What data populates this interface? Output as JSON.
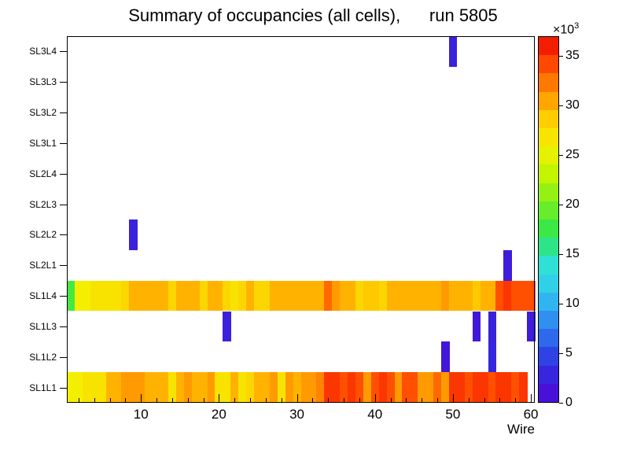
{
  "chart_data": {
    "type": "heatmap",
    "title": "Summary of occupancies (all cells),      run 5805",
    "xlabel": "Wire",
    "x_range": [
      0.5,
      60.5
    ],
    "x_ticks": [
      10,
      20,
      30,
      40,
      50,
      60
    ],
    "x_minor_tick_step": 2,
    "z_range": [
      0,
      37000
    ],
    "z_ticks": [
      0,
      5,
      10,
      15,
      20,
      25,
      30,
      35
    ],
    "z_tick_unit": 1000,
    "z_exponent": {
      "base": "×10",
      "power": "3"
    },
    "grid": false,
    "legend_position": "right-colorbar",
    "palette": [
      {
        "t": 0.0,
        "c": "#5106d6"
      },
      {
        "t": 0.1,
        "c": "#2f2fe0"
      },
      {
        "t": 0.2,
        "c": "#2e7df0"
      },
      {
        "t": 0.3,
        "c": "#30c8f0"
      },
      {
        "t": 0.38,
        "c": "#2fe2d2"
      },
      {
        "t": 0.46,
        "c": "#2ee64e"
      },
      {
        "t": 0.54,
        "c": "#74ee22"
      },
      {
        "t": 0.62,
        "c": "#c0f400"
      },
      {
        "t": 0.7,
        "c": "#f4f000"
      },
      {
        "t": 0.78,
        "c": "#ffcc00"
      },
      {
        "t": 0.86,
        "c": "#ff8800"
      },
      {
        "t": 0.93,
        "c": "#ff4400"
      },
      {
        "t": 1.0,
        "c": "#ec0800"
      }
    ],
    "colorbar_bands": 20,
    "series": [
      {
        "layer": "SL1L1",
        "values": [
          26000,
          26000,
          27000,
          27000,
          27000,
          30000,
          30000,
          31000,
          31000,
          31000,
          30000,
          30000,
          30000,
          27000,
          30000,
          31000,
          30000,
          30000,
          31000,
          27000,
          27000,
          30000,
          27000,
          28000,
          30000,
          30000,
          31000,
          27000,
          31000,
          30000,
          31000,
          31000,
          32000,
          35000,
          35000,
          34000,
          35000,
          34000,
          31000,
          34000,
          35000,
          34000,
          31000,
          34000,
          34000,
          31000,
          31000,
          33000,
          31000,
          35000,
          35000,
          34000,
          35000,
          35000,
          34000,
          35000,
          35000,
          34000,
          35000,
          0
        ]
      },
      {
        "layer": "SL1L2",
        "values": [
          0,
          0,
          0,
          0,
          0,
          0,
          0,
          0,
          0,
          0,
          0,
          0,
          0,
          0,
          0,
          0,
          0,
          0,
          0,
          0,
          0,
          0,
          0,
          0,
          0,
          0,
          0,
          0,
          0,
          0,
          0,
          0,
          0,
          0,
          0,
          0,
          0,
          0,
          0,
          0,
          0,
          0,
          0,
          0,
          0,
          0,
          0,
          0,
          1500,
          0,
          0,
          0,
          0,
          0,
          3000,
          0,
          0,
          0,
          0,
          0
        ]
      },
      {
        "layer": "SL1L3",
        "values": [
          0,
          0,
          0,
          0,
          0,
          0,
          0,
          0,
          0,
          0,
          0,
          0,
          0,
          0,
          0,
          0,
          0,
          0,
          0,
          0,
          2500,
          0,
          0,
          0,
          0,
          0,
          0,
          0,
          0,
          0,
          0,
          0,
          0,
          0,
          0,
          0,
          0,
          0,
          0,
          0,
          0,
          0,
          0,
          0,
          0,
          0,
          0,
          0,
          0,
          0,
          0,
          0,
          1500,
          0,
          2500,
          0,
          0,
          0,
          0,
          2000
        ]
      },
      {
        "layer": "SL1L4",
        "values": [
          18000,
          26000,
          26000,
          27000,
          27000,
          27000,
          27000,
          28000,
          30000,
          30000,
          30000,
          30000,
          30000,
          28000,
          30000,
          30000,
          30000,
          28000,
          30000,
          30000,
          28000,
          27000,
          28000,
          30000,
          28000,
          28000,
          30000,
          30000,
          30000,
          30000,
          30000,
          30000,
          30000,
          33000,
          31000,
          30000,
          30000,
          28000,
          29000,
          29000,
          28000,
          30000,
          30000,
          30000,
          30000,
          30000,
          30000,
          30000,
          31000,
          30000,
          30000,
          30000,
          29000,
          30000,
          30000,
          34000,
          35000,
          34000,
          34000,
          34000
        ]
      },
      {
        "layer": "SL2L1",
        "values": [
          0,
          0,
          0,
          0,
          0,
          0,
          0,
          0,
          0,
          0,
          0,
          0,
          0,
          0,
          0,
          0,
          0,
          0,
          0,
          0,
          0,
          0,
          0,
          0,
          0,
          0,
          0,
          0,
          0,
          0,
          0,
          0,
          0,
          0,
          0,
          0,
          0,
          0,
          0,
          0,
          0,
          0,
          0,
          0,
          0,
          0,
          0,
          0,
          0,
          0,
          0,
          0,
          0,
          0,
          0,
          0,
          2000,
          0,
          0,
          0
        ]
      },
      {
        "layer": "SL2L2",
        "values": [
          0,
          0,
          0,
          0,
          0,
          0,
          0,
          0,
          2500,
          0,
          0,
          0,
          0,
          0,
          0,
          0,
          0,
          0,
          0,
          0,
          0,
          0,
          0,
          0,
          0,
          0,
          0,
          0,
          0,
          0,
          0,
          0,
          0,
          0,
          0,
          0,
          0,
          0,
          0,
          0,
          0,
          0,
          0,
          0,
          0,
          0,
          0,
          0,
          0,
          0,
          0,
          0,
          0,
          0,
          0,
          0,
          0,
          0,
          0,
          0
        ]
      },
      {
        "layer": "SL2L3",
        "values": [
          0,
          0,
          0,
          0,
          0,
          0,
          0,
          0,
          0,
          0,
          0,
          0,
          0,
          0,
          0,
          0,
          0,
          0,
          0,
          0,
          0,
          0,
          0,
          0,
          0,
          0,
          0,
          0,
          0,
          0,
          0,
          0,
          0,
          0,
          0,
          0,
          0,
          0,
          0,
          0,
          0,
          0,
          0,
          0,
          0,
          0,
          0,
          0,
          0,
          0,
          0,
          0,
          0,
          0,
          0,
          0,
          0,
          0,
          0,
          0
        ]
      },
      {
        "layer": "SL2L4",
        "values": [
          0,
          0,
          0,
          0,
          0,
          0,
          0,
          0,
          0,
          0,
          0,
          0,
          0,
          0,
          0,
          0,
          0,
          0,
          0,
          0,
          0,
          0,
          0,
          0,
          0,
          0,
          0,
          0,
          0,
          0,
          0,
          0,
          0,
          0,
          0,
          0,
          0,
          0,
          0,
          0,
          0,
          0,
          0,
          0,
          0,
          0,
          0,
          0,
          0,
          0,
          0,
          0,
          0,
          0,
          0,
          0,
          0,
          0,
          0,
          0
        ]
      },
      {
        "layer": "SL3L1",
        "values": [
          0,
          0,
          0,
          0,
          0,
          0,
          0,
          0,
          0,
          0,
          0,
          0,
          0,
          0,
          0,
          0,
          0,
          0,
          0,
          0,
          0,
          0,
          0,
          0,
          0,
          0,
          0,
          0,
          0,
          0,
          0,
          0,
          0,
          0,
          0,
          0,
          0,
          0,
          0,
          0,
          0,
          0,
          0,
          0,
          0,
          0,
          0,
          0,
          0,
          0,
          0,
          0,
          0,
          0,
          0,
          0,
          0,
          0,
          0,
          0
        ]
      },
      {
        "layer": "SL3L2",
        "values": [
          0,
          0,
          0,
          0,
          0,
          0,
          0,
          0,
          0,
          0,
          0,
          0,
          0,
          0,
          0,
          0,
          0,
          0,
          0,
          0,
          0,
          0,
          0,
          0,
          0,
          0,
          0,
          0,
          0,
          0,
          0,
          0,
          0,
          0,
          0,
          0,
          0,
          0,
          0,
          0,
          0,
          0,
          0,
          0,
          0,
          0,
          0,
          0,
          0,
          0,
          0,
          0,
          0,
          0,
          0,
          0,
          0,
          0,
          0,
          0
        ]
      },
      {
        "layer": "SL3L3",
        "values": [
          0,
          0,
          0,
          0,
          0,
          0,
          0,
          0,
          0,
          0,
          0,
          0,
          0,
          0,
          0,
          0,
          0,
          0,
          0,
          0,
          0,
          0,
          0,
          0,
          0,
          0,
          0,
          0,
          0,
          0,
          0,
          0,
          0,
          0,
          0,
          0,
          0,
          0,
          0,
          0,
          0,
          0,
          0,
          0,
          0,
          0,
          0,
          0,
          0,
          0,
          0,
          0,
          0,
          0,
          0,
          0,
          0,
          0,
          0,
          0
        ]
      },
      {
        "layer": "SL3L4",
        "values": [
          0,
          0,
          0,
          0,
          0,
          0,
          0,
          0,
          0,
          0,
          0,
          0,
          0,
          0,
          0,
          0,
          0,
          0,
          0,
          0,
          0,
          0,
          0,
          0,
          0,
          0,
          0,
          0,
          0,
          0,
          0,
          0,
          0,
          0,
          0,
          0,
          0,
          0,
          0,
          0,
          0,
          0,
          0,
          0,
          0,
          0,
          0,
          0,
          0,
          2500,
          0,
          0,
          0,
          0,
          0,
          0,
          0,
          0,
          0,
          0
        ]
      }
    ]
  }
}
